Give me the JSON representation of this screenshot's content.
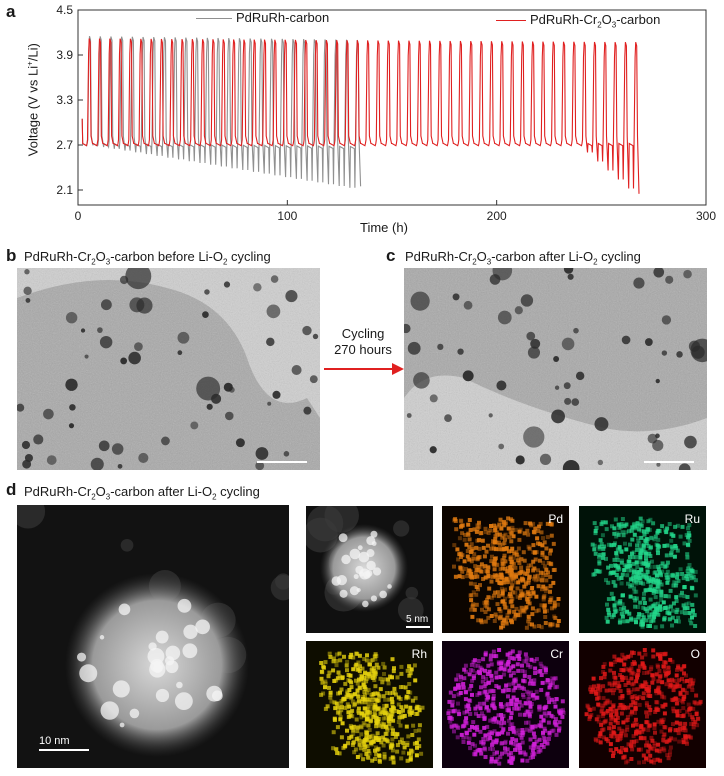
{
  "panels": {
    "a": {
      "letter": "a"
    },
    "b": {
      "letter": "b",
      "caption_prefix": "PdRuRh-Cr",
      "sub1": "2",
      "mid": "O",
      "sub2": "3",
      "caption_suffix_a": "-carbon before Li-O",
      "sub3": "2",
      "caption_suffix_b": " cycling"
    },
    "c": {
      "letter": "c",
      "caption_prefix": "PdRuRh-Cr",
      "sub1": "2",
      "mid": "O",
      "sub2": "3",
      "caption_suffix_a": "-carbon after Li-O",
      "sub3": "2",
      "caption_suffix_b": " cycling"
    },
    "d": {
      "letter": "d",
      "caption_prefix": "PdRuRh-Cr",
      "sub1": "2",
      "mid": "O",
      "sub2": "3",
      "caption_suffix_a": "-carbon after Li-O",
      "sub3": "2",
      "caption_suffix_b": " cycling"
    }
  },
  "arrow": {
    "line1": "Cycling",
    "line2": "270 hours",
    "color": "#e02020"
  },
  "eds": {
    "haadf_scale": "5 nm",
    "main_scale": "10 nm",
    "maps": [
      {
        "label": "Pd",
        "color": "#e07a10"
      },
      {
        "label": "Ru",
        "color": "#22d68a"
      },
      {
        "label": "Rh",
        "color": "#e6d20e"
      },
      {
        "label": "Cr",
        "color": "#d020d8"
      },
      {
        "label": "O",
        "color": "#e01818"
      }
    ]
  },
  "chart_data": {
    "type": "line",
    "xlabel": "Time (h)",
    "ylabel_prefix": "Voltage (V vs Li",
    "ylabel_sup": "+",
    "ylabel_suffix": "/Li)",
    "xlim": [
      0,
      300
    ],
    "ylim": [
      1.9,
      4.5
    ],
    "xticks": [
      "0",
      "100",
      "200",
      "300"
    ],
    "yticks": [
      "2.1",
      "2.7",
      "3.3",
      "3.9",
      "4.5"
    ],
    "legend": [
      {
        "prefix": "PdRuRh-carbon",
        "color": "#909090"
      },
      {
        "prefix": "PdRuRh-Cr",
        "sub1": "2",
        "mid": "O",
        "sub2": "3",
        "suffix": "-carbon",
        "color": "#e02020"
      }
    ],
    "series": [
      {
        "name": "PdRuRh-carbon",
        "color": "#909090",
        "x_start": 2,
        "x_end": 135,
        "cycles": 26,
        "discharge_start": 2.72,
        "discharge_end": 2.68,
        "charge_end": 4.15,
        "end_drop": 2.15
      },
      {
        "name": "PdRuRh-Cr2O3-carbon",
        "color": "#e02020",
        "x_start": 2,
        "x_end": 268,
        "cycles": 54,
        "discharge_start": 2.72,
        "discharge_end": 2.72,
        "charge_end": 4.12,
        "end_drop": 2.05
      }
    ]
  }
}
